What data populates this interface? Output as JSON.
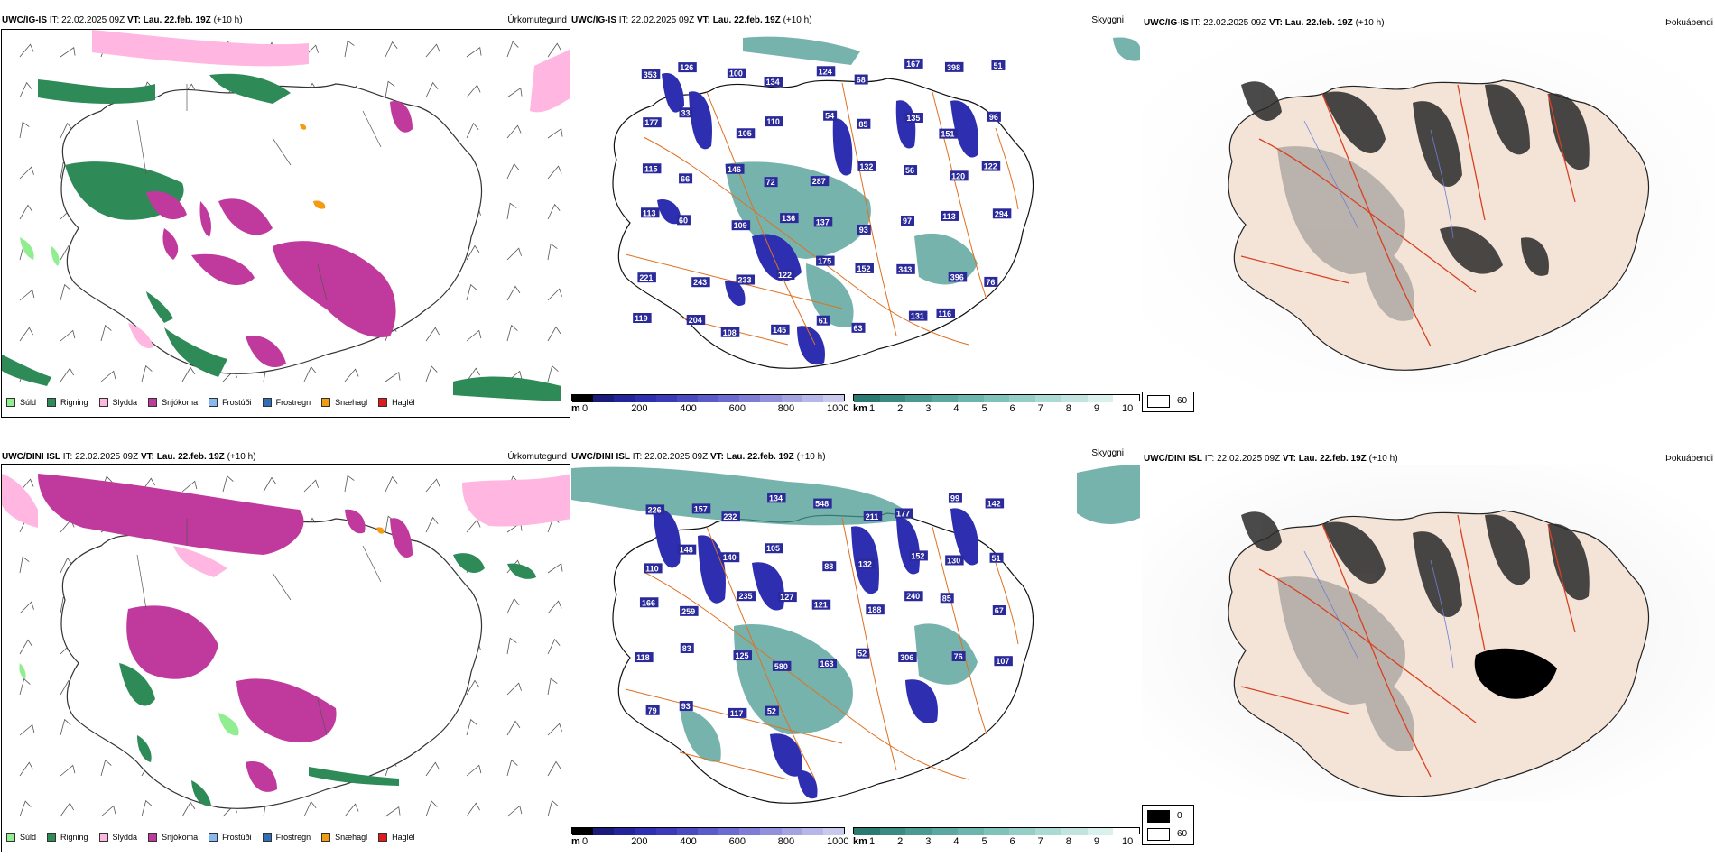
{
  "rows": [
    {
      "model": "UWC/IG-IS",
      "it_label": "IT:",
      "it_value": "22.02.2025 09Z",
      "vt_label": "VT:",
      "vt_value": "Lau. 22.feb. 19Z",
      "lead": "(+10 h)"
    },
    {
      "model": "UWC/DINI ISL",
      "it_label": "IT:",
      "it_value": "22.02.2025 09Z",
      "vt_label": "VT:",
      "vt_value": "Lau. 22.feb. 19Z",
      "lead": "(+10 h)"
    }
  ],
  "panel_titles": {
    "precip_type": "Úrkomutegund",
    "clouds": "Skyggni",
    "dewpoint": "Þokuábendi"
  },
  "precip_legend": [
    {
      "label": "Súld",
      "color": "#90ee90"
    },
    {
      "label": "Rigning",
      "color": "#2e8b57"
    },
    {
      "label": "Slydda",
      "color": "#ffb6e1"
    },
    {
      "label": "Snjókoma",
      "color": "#c0399c"
    },
    {
      "label": "Frostúði",
      "color": "#87b8f0"
    },
    {
      "label": "Frostregn",
      "color": "#2f6fb8"
    },
    {
      "label": "Snæhagl",
      "color": "#f39c12"
    },
    {
      "label": "Haglél",
      "color": "#e31a1c"
    }
  ],
  "colorbar_m": {
    "unit": "m",
    "ticks": [
      "0",
      "200",
      "400",
      "600",
      "800",
      "1000"
    ],
    "colors": [
      "#000000",
      "#1a1a7a",
      "#23239a",
      "#2e2eb0",
      "#3a3ab8",
      "#4a4ac0",
      "#5a5ac8",
      "#6a6ad0",
      "#7d7dd6",
      "#9090dc",
      "#a3a3e2",
      "#b6b6e8",
      "#c9c9ee"
    ]
  },
  "colorbar_km": {
    "unit": "km",
    "ticks": [
      "1",
      "2",
      "3",
      "4",
      "5",
      "6",
      "7",
      "8",
      "9",
      "10"
    ],
    "colors": [
      "#2a7a72",
      "#3a8a82",
      "#4a9a92",
      "#5aa8a0",
      "#6bb5ad",
      "#7fc2ba",
      "#95cec7",
      "#abd9d3",
      "#c2e4df",
      "#daf0ec",
      "#ffffff"
    ]
  },
  "fog_legend": {
    "low": "0",
    "high": "60"
  },
  "visibility_numbers_top": [
    "353",
    "126",
    "100",
    "134",
    "124",
    "68",
    "167",
    "398",
    "51",
    "177",
    "33",
    "105",
    "110",
    "54",
    "85",
    "135",
    "151",
    "96",
    "115",
    "66",
    "146",
    "72",
    "287",
    "132",
    "56",
    "120",
    "122",
    "113",
    "60",
    "109",
    "136",
    "137",
    "93",
    "97",
    "113",
    "294",
    "221",
    "243",
    "233",
    "122",
    "175",
    "152",
    "343",
    "396",
    "76",
    "119",
    "204",
    "108",
    "145",
    "61",
    "63",
    "131",
    "116"
  ],
  "visibility_numbers_bottom": [
    "226",
    "157",
    "232",
    "134",
    "548",
    "211",
    "177",
    "99",
    "142",
    "110",
    "148",
    "140",
    "105",
    "88",
    "132",
    "152",
    "130",
    "51",
    "166",
    "259",
    "235",
    "127",
    "121",
    "188",
    "240",
    "85",
    "67",
    "118",
    "83",
    "125",
    "580",
    "163",
    "52",
    "306",
    "76",
    "107",
    "79",
    "93",
    "117",
    "52"
  ]
}
